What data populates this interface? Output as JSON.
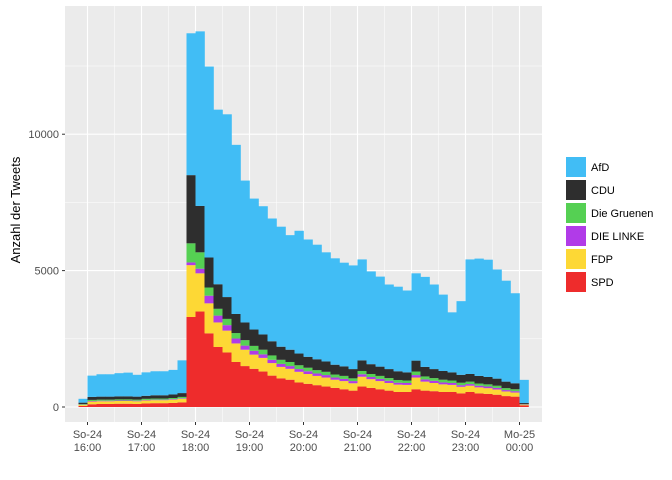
{
  "chart_data": {
    "type": "bar",
    "stacked": true,
    "ylabel": "Anzahl der Tweets",
    "xlabel": "",
    "ylim": [
      -550,
      14700
    ],
    "yticks": [
      0,
      5000,
      10000
    ],
    "ytick_labels": [
      "0",
      "5000",
      "10000"
    ],
    "grid": true,
    "legend": "right",
    "xticks": [
      {
        "line1": "So-24",
        "line2": "16:00",
        "pos": 0
      },
      {
        "line1": "So-24",
        "line2": "17:00",
        "pos": 6
      },
      {
        "line1": "So-24",
        "line2": "18:00",
        "pos": 12
      },
      {
        "line1": "So-24",
        "line2": "19:00",
        "pos": 18
      },
      {
        "line1": "So-24",
        "line2": "20:00",
        "pos": 24
      },
      {
        "line1": "So-24",
        "line2": "21:00",
        "pos": 30
      },
      {
        "line1": "So-24",
        "line2": "22:00",
        "pos": 36
      },
      {
        "line1": "So-24",
        "line2": "23:00",
        "pos": 42
      },
      {
        "line1": "Mo-25",
        "line2": "00:00",
        "pos": 48
      }
    ],
    "x": [
      -0.5,
      0.5,
      1.5,
      2.5,
      3.5,
      4.5,
      5.5,
      6.5,
      7.5,
      8.5,
      9.5,
      10.5,
      11.5,
      12.5,
      13.5,
      14.5,
      15.5,
      16.5,
      17.5,
      18.5,
      19.5,
      20.5,
      21.5,
      22.5,
      23.5,
      24.5,
      25.5,
      26.5,
      27.5,
      28.5,
      29.5,
      30.5,
      31.5,
      32.5,
      33.5,
      34.5,
      35.5,
      36.5,
      37.5,
      38.5,
      39.5,
      40.5,
      41.5,
      42.5,
      43.5,
      44.5,
      45.5,
      46.5,
      47.5,
      48.5
    ],
    "series": [
      {
        "name": "SPD",
        "color": "#EE2C2C",
        "values": [
          40,
          100,
          110,
          110,
          120,
          120,
          110,
          130,
          140,
          140,
          150,
          170,
          3300,
          3500,
          2700,
          2200,
          2000,
          1650,
          1500,
          1400,
          1300,
          1150,
          1050,
          1000,
          900,
          850,
          800,
          750,
          700,
          650,
          600,
          750,
          700,
          650,
          600,
          550,
          550,
          650,
          600,
          580,
          550,
          550,
          500,
          550,
          500,
          480,
          450,
          400,
          380,
          60
        ]
      },
      {
        "name": "FDP",
        "color": "#FDD835",
        "values": [
          40,
          100,
          100,
          100,
          100,
          100,
          100,
          110,
          110,
          110,
          120,
          130,
          1900,
          1400,
          1100,
          900,
          800,
          680,
          600,
          520,
          500,
          460,
          420,
          400,
          390,
          360,
          340,
          330,
          300,
          300,
          270,
          360,
          320,
          300,
          280,
          270,
          260,
          430,
          330,
          300,
          280,
          260,
          240,
          230,
          220,
          210,
          190,
          170,
          150,
          25
        ]
      },
      {
        "name": "DIE LINKE",
        "color": "#B13BE8",
        "values": [
          10,
          20,
          20,
          20,
          20,
          20,
          20,
          20,
          20,
          20,
          20,
          20,
          100,
          170,
          280,
          250,
          200,
          180,
          150,
          140,
          130,
          120,
          110,
          100,
          100,
          100,
          90,
          90,
          80,
          80,
          80,
          90,
          80,
          80,
          80,
          70,
          70,
          90,
          80,
          80,
          70,
          70,
          60,
          60,
          60,
          60,
          60,
          50,
          50,
          10
        ]
      },
      {
        "name": "Die Gruenen",
        "color": "#55D053",
        "values": [
          20,
          40,
          40,
          40,
          40,
          40,
          40,
          40,
          40,
          40,
          40,
          50,
          700,
          600,
          300,
          250,
          230,
          200,
          200,
          180,
          170,
          160,
          150,
          150,
          140,
          130,
          120,
          120,
          110,
          110,
          100,
          120,
          110,
          110,
          100,
          100,
          90,
          130,
          110,
          100,
          100,
          90,
          90,
          90,
          80,
          80,
          80,
          70,
          70,
          10
        ]
      },
      {
        "name": "CDU",
        "color": "#2E2E2E",
        "values": [
          50,
          110,
          110,
          110,
          110,
          110,
          110,
          110,
          120,
          120,
          130,
          140,
          2500,
          1700,
          1100,
          900,
          800,
          700,
          650,
          600,
          560,
          520,
          480,
          450,
          430,
          400,
          400,
          380,
          360,
          350,
          340,
          390,
          360,
          340,
          330,
          320,
          300,
          400,
          350,
          330,
          320,
          300,
          290,
          280,
          280,
          270,
          260,
          240,
          220,
          40
        ]
      },
      {
        "name": "AfD",
        "color": "#41BDF5",
        "values": [
          140,
          780,
          820,
          820,
          850,
          870,
          800,
          860,
          880,
          880,
          900,
          1200,
          5200,
          6400,
          7000,
          6400,
          6700,
          6200,
          5200,
          4800,
          4700,
          4500,
          4400,
          4200,
          4500,
          4300,
          4200,
          4000,
          3900,
          3800,
          3800,
          3700,
          3400,
          3300,
          3100,
          3100,
          3000,
          3200,
          3300,
          3100,
          2800,
          2200,
          2700,
          4200,
          4300,
          4300,
          4000,
          3700,
          3300,
          850
        ]
      }
    ],
    "legend_order": [
      "AfD",
      "CDU",
      "Die Gruenen",
      "DIE LINKE",
      "FDP",
      "SPD"
    ]
  }
}
